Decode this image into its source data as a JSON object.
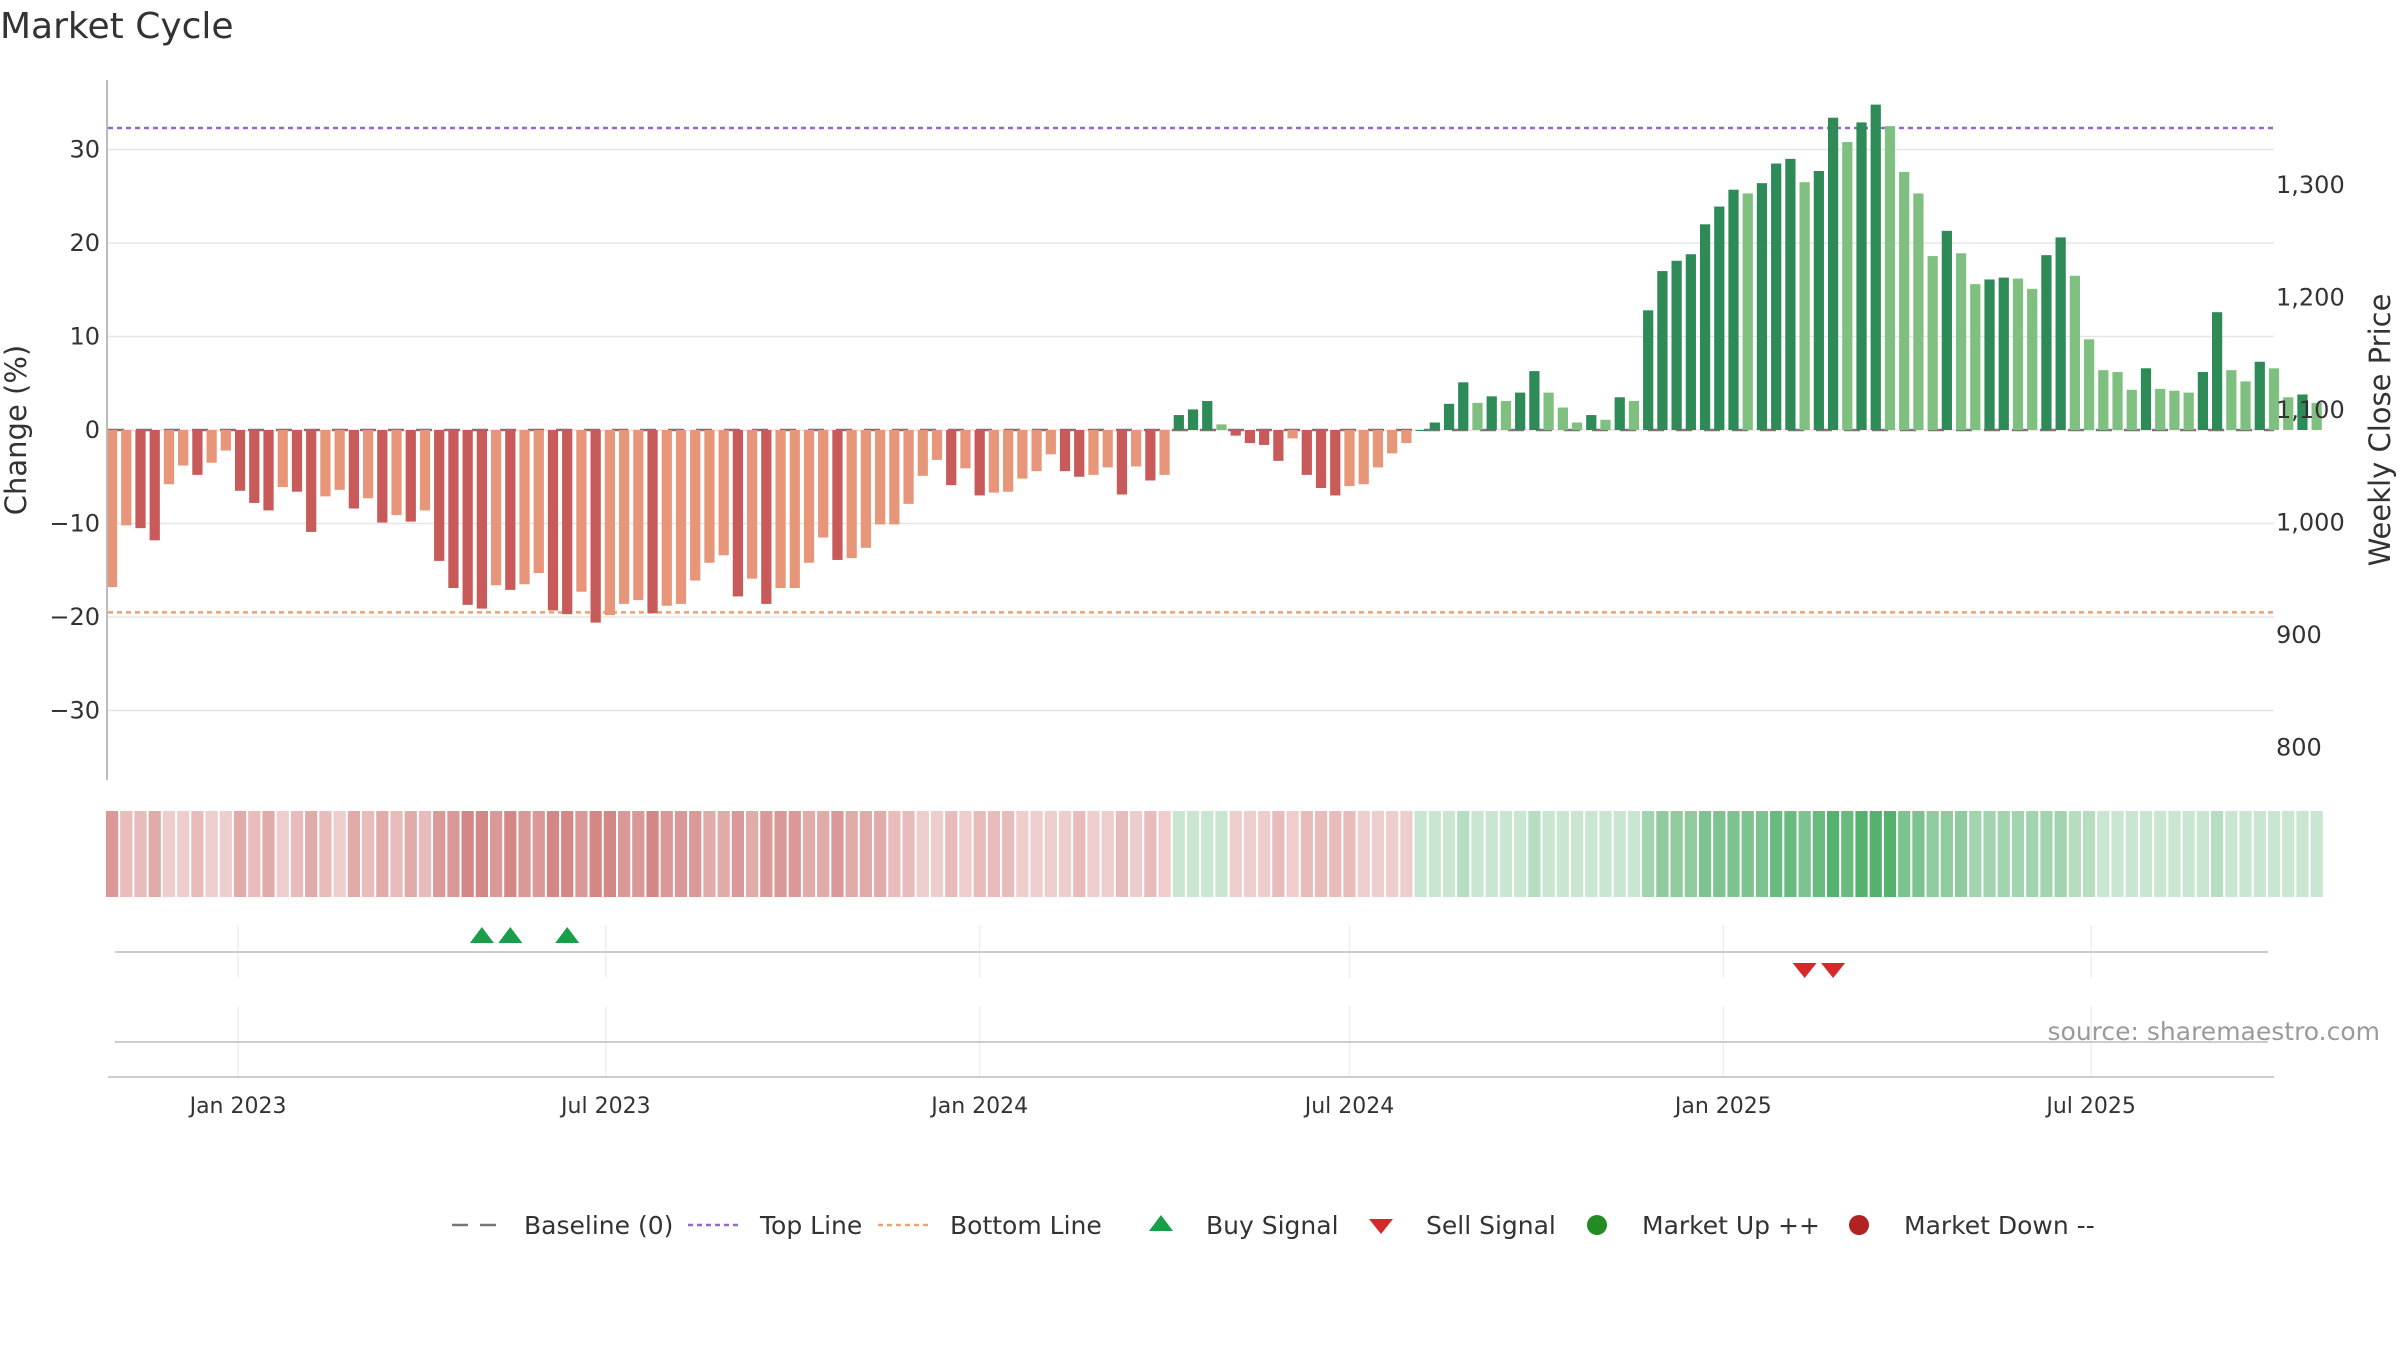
{
  "chart_data": {
    "type": "bar",
    "title": "Market Cycle",
    "ylabel": "Change (%)",
    "y2label": "Weekly Close Price",
    "ylim": [
      -37,
      38
    ],
    "y_ticks": [
      30,
      20,
      10,
      0,
      -10,
      -20,
      -30
    ],
    "y_tick_labels": [
      "30",
      "20",
      "10",
      "0",
      "−10",
      "−20",
      "−30"
    ],
    "y2_ticks": [
      1300,
      1200,
      1100,
      1000,
      900,
      800
    ],
    "y2_tick_labels": [
      "1,300",
      "1,200",
      "1,100",
      "1,000",
      "900",
      "800"
    ],
    "x_ticks": [
      "2023-01-01",
      "2023-07-01",
      "2024-01-01",
      "2024-07-01",
      "2025-01-01",
      "2025-07-01"
    ],
    "x_tick_labels": [
      "Jan 2023",
      "Jul 2023",
      "Jan 2024",
      "Jul 2024",
      "Jan 2025",
      "Jul 2025"
    ],
    "xlim": [
      "2022-10-29",
      "2025-09-29"
    ],
    "first_week": "2022-10-31",
    "top_line": 32.3,
    "bottom_line": -19.5,
    "baseline": 0,
    "values": [
      -16.8,
      -10.2,
      -10.5,
      -11.8,
      -5.8,
      -3.8,
      -4.8,
      -3.5,
      -2.2,
      -6.5,
      -7.8,
      -8.6,
      -6.1,
      -6.6,
      -10.9,
      -7.1,
      -6.4,
      -8.4,
      -7.3,
      -9.9,
      -9.1,
      -9.8,
      -8.6,
      -14.0,
      -16.9,
      -18.7,
      -19.1,
      -16.6,
      -17.1,
      -16.5,
      -15.3,
      -19.3,
      -19.7,
      -17.3,
      -20.6,
      -19.8,
      -18.6,
      -18.2,
      -19.6,
      -18.8,
      -18.6,
      -16.1,
      -14.2,
      -13.4,
      -17.8,
      -15.9,
      -18.6,
      -16.9,
      -16.9,
      -14.2,
      -11.5,
      -13.9,
      -13.7,
      -12.6,
      -10.1,
      -10.1,
      -7.9,
      -4.9,
      -3.2,
      -5.9,
      -4.1,
      -7.0,
      -6.7,
      -6.6,
      -5.2,
      -4.4,
      -2.6,
      -4.4,
      -5.0,
      -4.8,
      -4.0,
      -6.9,
      -3.9,
      -5.4,
      -4.8,
      1.6,
      2.2,
      3.1,
      0.6,
      -0.6,
      -1.4,
      -1.6,
      -3.3,
      -0.9,
      -4.8,
      -6.2,
      -7.0,
      -6.0,
      -5.8,
      -4.0,
      -2.5,
      -1.4,
      0.0,
      0.8,
      2.8,
      5.1,
      2.9,
      3.6,
      3.1,
      4.0,
      6.3,
      4.0,
      2.4,
      0.8,
      1.6,
      1.1,
      3.5,
      3.1,
      12.8,
      17.0,
      18.1,
      18.8,
      22.0,
      23.9,
      25.7,
      25.3,
      26.4,
      28.5,
      29.0,
      26.5,
      27.7,
      33.4,
      30.8,
      32.9,
      34.8,
      32.5,
      27.6,
      25.3,
      18.6,
      21.3,
      18.9,
      15.6,
      16.1,
      16.3,
      16.2,
      15.1,
      18.7,
      20.6,
      16.5,
      9.7,
      6.4,
      6.2,
      4.3,
      6.6,
      4.4,
      4.2,
      4.0,
      6.2,
      12.6,
      6.4,
      5.2,
      7.3,
      6.6,
      3.5,
      3.8,
      2.9
    ],
    "strip_color_levels": [
      4,
      2,
      2,
      3,
      1,
      1,
      2,
      1,
      1,
      3,
      2,
      3,
      1,
      2,
      3,
      2,
      1,
      3,
      2,
      3,
      2,
      3,
      2,
      4,
      4,
      5,
      5,
      4,
      5,
      4,
      4,
      5,
      5,
      4,
      5,
      5,
      4,
      4,
      5,
      4,
      4,
      4,
      3,
      3,
      4,
      3,
      4,
      4,
      4,
      3,
      3,
      4,
      3,
      3,
      3,
      2,
      2,
      1,
      1,
      2,
      1,
      2,
      2,
      2,
      1,
      1,
      1,
      1,
      2,
      1,
      1,
      2,
      1,
      2,
      1,
      1,
      1,
      1,
      1,
      1,
      1,
      1,
      2,
      1,
      2,
      2,
      2,
      2,
      1,
      1,
      1,
      1,
      1,
      1,
      1,
      2,
      1,
      1,
      1,
      1,
      2,
      1,
      1,
      1,
      1,
      1,
      1,
      1,
      3,
      4,
      4,
      4,
      5,
      5,
      5,
      5,
      5,
      6,
      6,
      5,
      6,
      7,
      6,
      7,
      7,
      7,
      5,
      5,
      4,
      4,
      4,
      3,
      3,
      3,
      3,
      3,
      3,
      3,
      2,
      2,
      1,
      1,
      1,
      1,
      1,
      1,
      1,
      1,
      2,
      1,
      1,
      1,
      1,
      1,
      1,
      1
    ],
    "buy_signals": [
      "2023-05-01",
      "2023-05-15",
      "2023-06-12"
    ],
    "sell_signals": [
      "2025-02-10",
      "2025-02-24"
    ],
    "source": "source: sharemaestro.com",
    "legend": [
      {
        "label": "Baseline (0)",
        "style": "dashed-gray"
      },
      {
        "label": "Top Line",
        "style": "dotted-purple"
      },
      {
        "label": "Bottom Line",
        "style": "dotted-orange"
      },
      {
        "label": "Buy Signal",
        "style": "triangle-up-green"
      },
      {
        "label": "Sell Signal",
        "style": "triangle-down-red"
      },
      {
        "label": "Market Up ++",
        "style": "dot-green"
      },
      {
        "label": "Market Down --",
        "style": "dot-red"
      }
    ],
    "colors": {
      "pos_dark": "#2e8b57",
      "pos_light": "#7fbf7f",
      "neg_dark": "#c85a5a",
      "neg_light": "#e8967a",
      "top_line": "#9966cc",
      "bottom_line": "#f0a070",
      "baseline": "#777777",
      "buy": "#1a9e4a",
      "sell": "#d62828",
      "market_up": "#228b22",
      "market_down": "#b22222",
      "strip_pos": "#3ea65a",
      "strip_neg": "#c0504d"
    }
  }
}
